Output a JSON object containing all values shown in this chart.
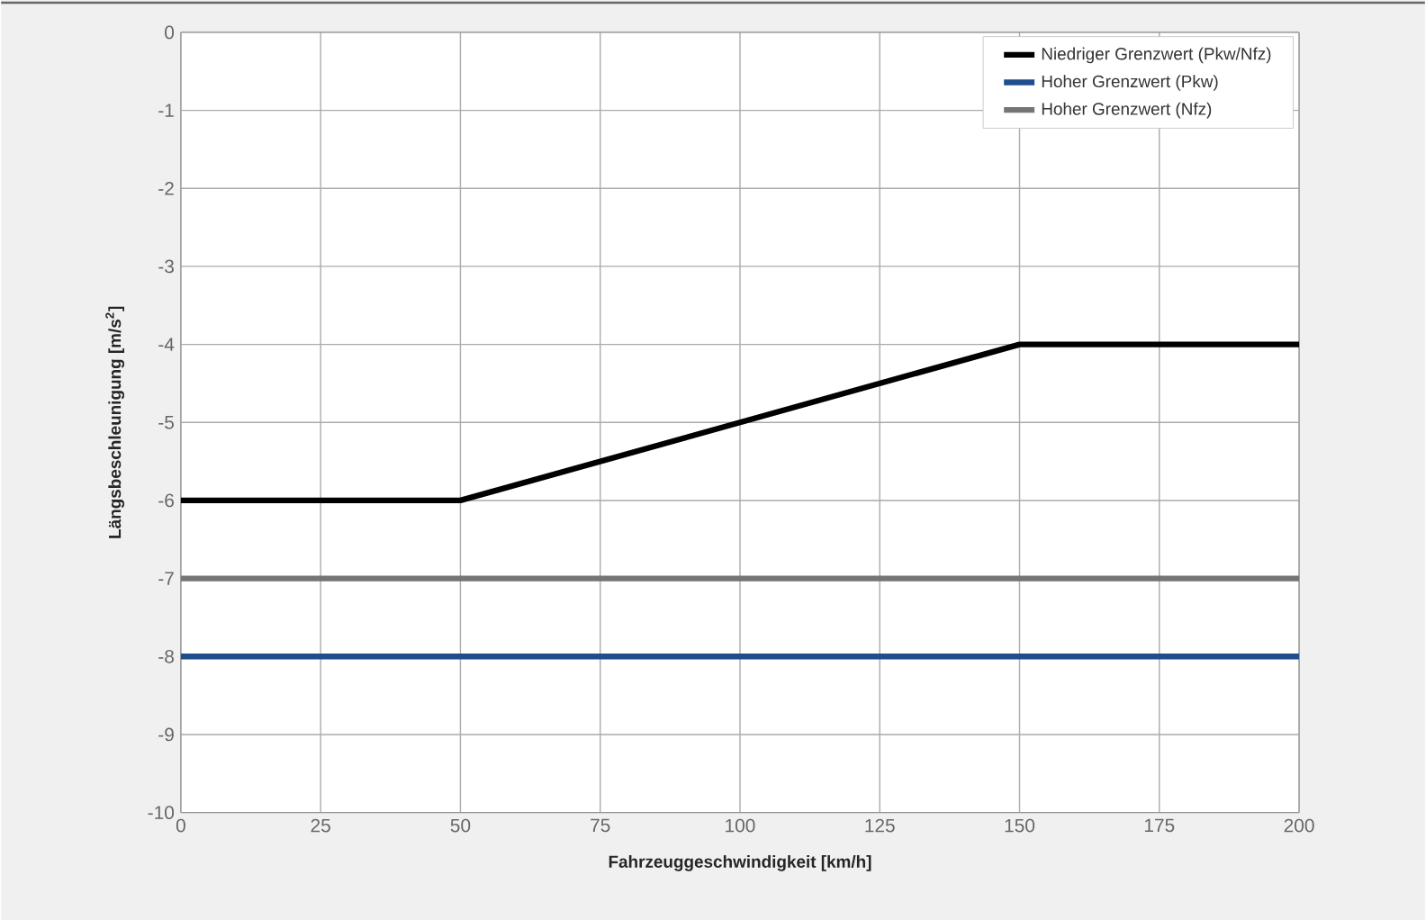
{
  "chart_data": {
    "type": "line",
    "xlabel": "Fahrzeuggeschwindigkeit [km/h]",
    "ylabel": "Längsbeschleunigung [m/s$^{2}$]",
    "series": [
      {
        "name": "Niedriger Grenzwert (Pkw/Nfz)",
        "color": "#000000",
        "x": [
          0,
          50,
          150,
          200
        ],
        "values": [
          -6,
          -6,
          -4,
          -4
        ]
      },
      {
        "name": "Hoher Grenzwert (Pkw)",
        "color": "#1f4e8c",
        "x": [
          0,
          200
        ],
        "values": [
          -8,
          -8
        ]
      },
      {
        "name": "Hoher Grenzwert (Nfz)",
        "color": "#757575",
        "x": [
          0,
          200
        ],
        "values": [
          -7,
          -7
        ]
      }
    ],
    "xlim": [
      0,
      200
    ],
    "xticks": [
      0,
      25,
      50,
      75,
      100,
      125,
      150,
      175,
      200
    ],
    "ylim": [
      -10,
      0
    ],
    "yticks": [
      -10,
      -9,
      -8,
      -7,
      -6,
      -5,
      -4,
      -3,
      -2,
      -1,
      0
    ],
    "grid": true,
    "legend": "top right",
    "marker": "none",
    "line_style": "solid"
  }
}
